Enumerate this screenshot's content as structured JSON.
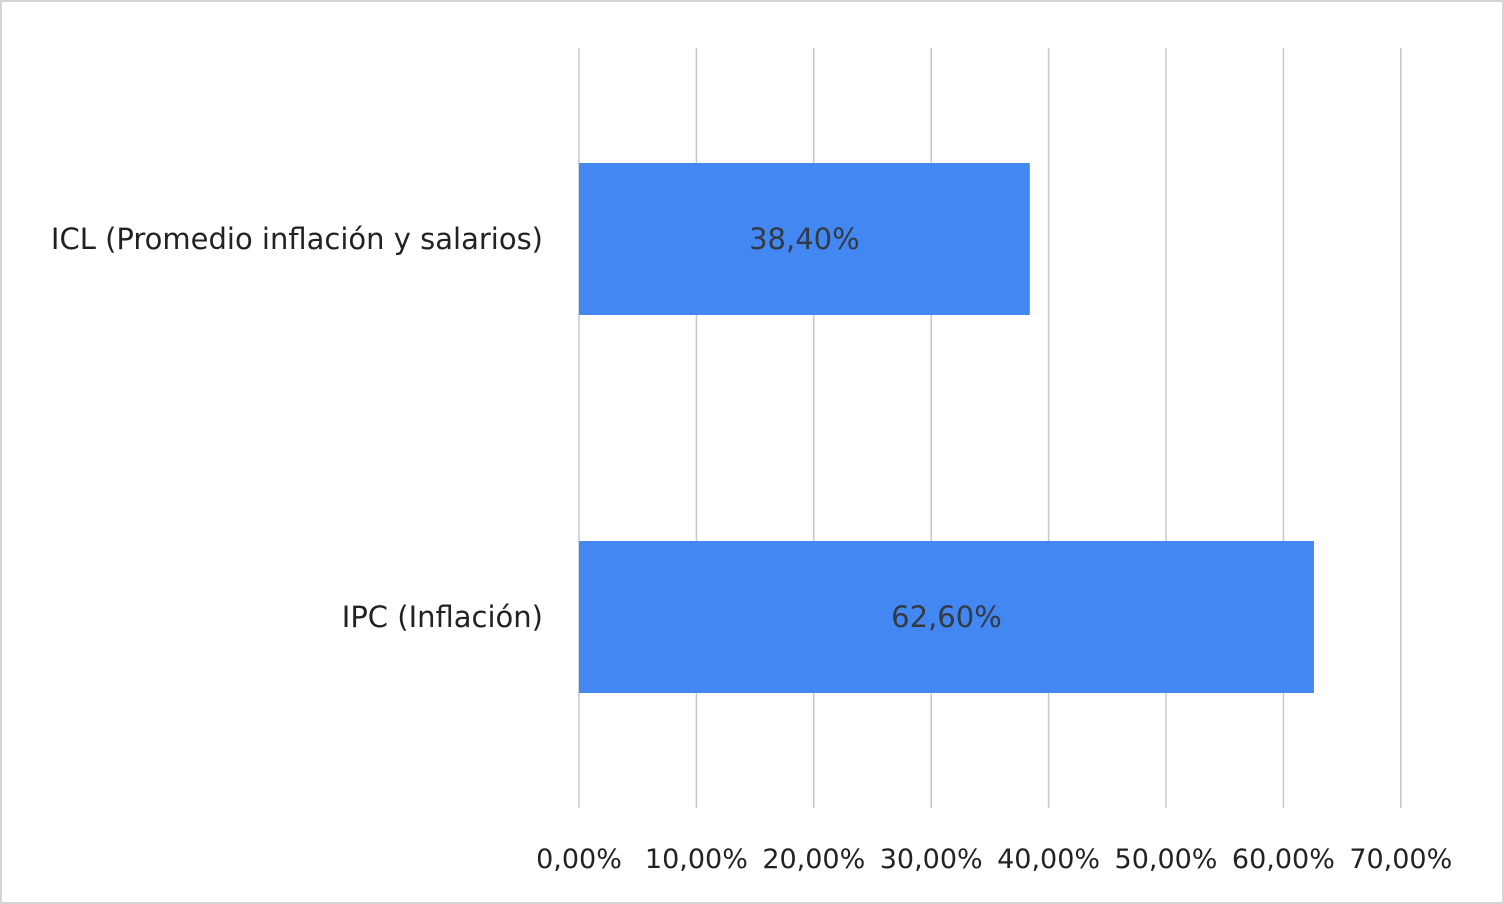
{
  "chart_data": {
    "type": "bar",
    "orientation": "horizontal",
    "categories": [
      "ICL (Promedio inflación y salarios)",
      "IPC (Inflación)"
    ],
    "values": [
      38.4,
      62.6
    ],
    "data_labels": [
      "38,40%",
      "62,60%"
    ],
    "title": "",
    "xlabel": "",
    "ylabel": "",
    "xlim": [
      0,
      70
    ],
    "x_ticks": [
      0,
      10,
      20,
      30,
      40,
      50,
      60,
      70
    ],
    "x_tick_labels": [
      "0,00%",
      "10,00%",
      "20,00%",
      "30,00%",
      "40,00%",
      "50,00%",
      "60,00%",
      "70,00%"
    ],
    "grid": true,
    "legend": "none",
    "bar_color": "#4388f2",
    "grid_color": "#c3c7d1"
  }
}
